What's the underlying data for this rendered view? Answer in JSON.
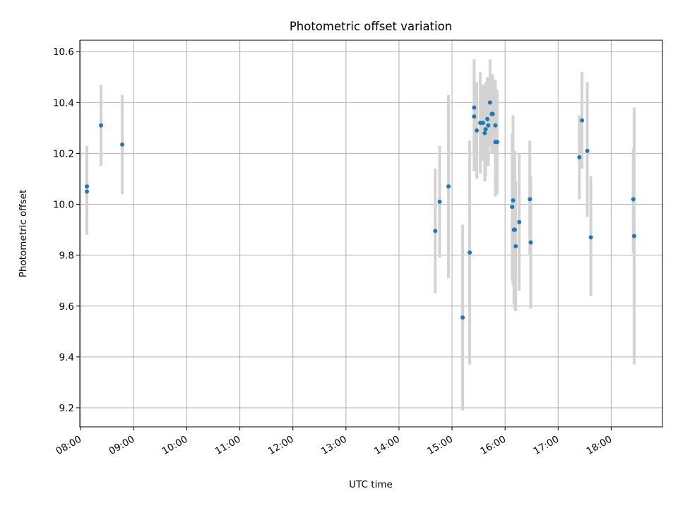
{
  "chart_data": {
    "type": "scatter",
    "title": "Photometric offset variation",
    "xlabel": "UTC time",
    "ylabel": "Photometric offset",
    "x_ticks": [
      "08:00",
      "09:00",
      "10:00",
      "11:00",
      "12:00",
      "13:00",
      "14:00",
      "15:00",
      "16:00",
      "17:00",
      "18:00"
    ],
    "y_ticks": [
      "9.2",
      "9.4",
      "9.6",
      "9.8",
      "10.0",
      "10.2",
      "10.4",
      "10.6"
    ],
    "xlim": [
      "07:59",
      "18:58"
    ],
    "ylim": [
      9.125,
      10.645
    ],
    "grid": true,
    "colors": {
      "point": "#1f77b4",
      "errorbar": "#d3d3d3",
      "grid": "#b0b0b0"
    },
    "series": [
      {
        "points": [
          {
            "x": "08:07",
            "y": 10.07,
            "lo": 9.91,
            "hi": 10.23
          },
          {
            "x": "08:07",
            "y": 10.05,
            "lo": 9.88,
            "hi": 10.21
          },
          {
            "x": "08:23",
            "y": 10.31,
            "lo": 10.15,
            "hi": 10.47
          },
          {
            "x": "08:47",
            "y": 10.235,
            "lo": 10.04,
            "hi": 10.43
          },
          {
            "x": "14:41",
            "y": 9.895,
            "lo": 9.65,
            "hi": 10.14
          },
          {
            "x": "14:46",
            "y": 10.01,
            "lo": 9.79,
            "hi": 10.23
          },
          {
            "x": "14:56",
            "y": 10.07,
            "lo": 9.71,
            "hi": 10.43
          },
          {
            "x": "15:12",
            "y": 9.555,
            "lo": 9.19,
            "hi": 9.92
          },
          {
            "x": "15:20",
            "y": 9.81,
            "lo": 9.37,
            "hi": 10.25
          },
          {
            "x": "15:25",
            "y": 10.38,
            "lo": 10.19,
            "hi": 10.57
          },
          {
            "x": "15:25",
            "y": 10.345,
            "lo": 10.13,
            "hi": 10.56
          },
          {
            "x": "15:28",
            "y": 10.29,
            "lo": 10.1,
            "hi": 10.48
          },
          {
            "x": "15:32",
            "y": 10.32,
            "lo": 10.12,
            "hi": 10.52
          },
          {
            "x": "15:35",
            "y": 10.32,
            "lo": 10.17,
            "hi": 10.47
          },
          {
            "x": "15:37",
            "y": 10.28,
            "lo": 10.09,
            "hi": 10.47
          },
          {
            "x": "15:38",
            "y": 10.295,
            "lo": 10.11,
            "hi": 10.48
          },
          {
            "x": "15:40",
            "y": 10.335,
            "lo": 10.17,
            "hi": 10.5
          },
          {
            "x": "15:41",
            "y": 10.31,
            "lo": 10.15,
            "hi": 10.47
          },
          {
            "x": "15:43",
            "y": 10.4,
            "lo": 10.23,
            "hi": 10.57
          },
          {
            "x": "15:45",
            "y": 10.355,
            "lo": 10.2,
            "hi": 10.51
          },
          {
            "x": "15:46",
            "y": 10.355,
            "lo": 10.2,
            "hi": 10.51
          },
          {
            "x": "15:49",
            "y": 10.31,
            "lo": 10.13,
            "hi": 10.49
          },
          {
            "x": "15:49",
            "y": 10.245,
            "lo": 10.03,
            "hi": 10.46
          },
          {
            "x": "15:51",
            "y": 10.245,
            "lo": 10.04,
            "hi": 10.45
          },
          {
            "x": "16:08",
            "y": 9.99,
            "lo": 9.7,
            "hi": 10.28
          },
          {
            "x": "16:09",
            "y": 10.015,
            "lo": 9.68,
            "hi": 10.35
          },
          {
            "x": "16:10",
            "y": 9.9,
            "lo": 9.61,
            "hi": 10.19
          },
          {
            "x": "16:11",
            "y": 9.9,
            "lo": 9.59,
            "hi": 10.21
          },
          {
            "x": "16:12",
            "y": 9.835,
            "lo": 9.58,
            "hi": 10.09
          },
          {
            "x": "16:16",
            "y": 9.93,
            "lo": 9.66,
            "hi": 10.2
          },
          {
            "x": "16:28",
            "y": 10.02,
            "lo": 9.8,
            "hi": 10.25
          },
          {
            "x": "16:29",
            "y": 9.85,
            "lo": 9.59,
            "hi": 10.11
          },
          {
            "x": "17:24",
            "y": 10.185,
            "lo": 10.02,
            "hi": 10.35
          },
          {
            "x": "17:27",
            "y": 10.33,
            "lo": 10.14,
            "hi": 10.52
          },
          {
            "x": "17:33",
            "y": 10.21,
            "lo": 9.95,
            "hi": 10.48
          },
          {
            "x": "17:37",
            "y": 9.87,
            "lo": 9.64,
            "hi": 10.11
          },
          {
            "x": "18:25",
            "y": 10.02,
            "lo": 9.81,
            "hi": 10.22
          },
          {
            "x": "18:26",
            "y": 9.875,
            "lo": 9.37,
            "hi": 10.38
          }
        ]
      }
    ]
  }
}
